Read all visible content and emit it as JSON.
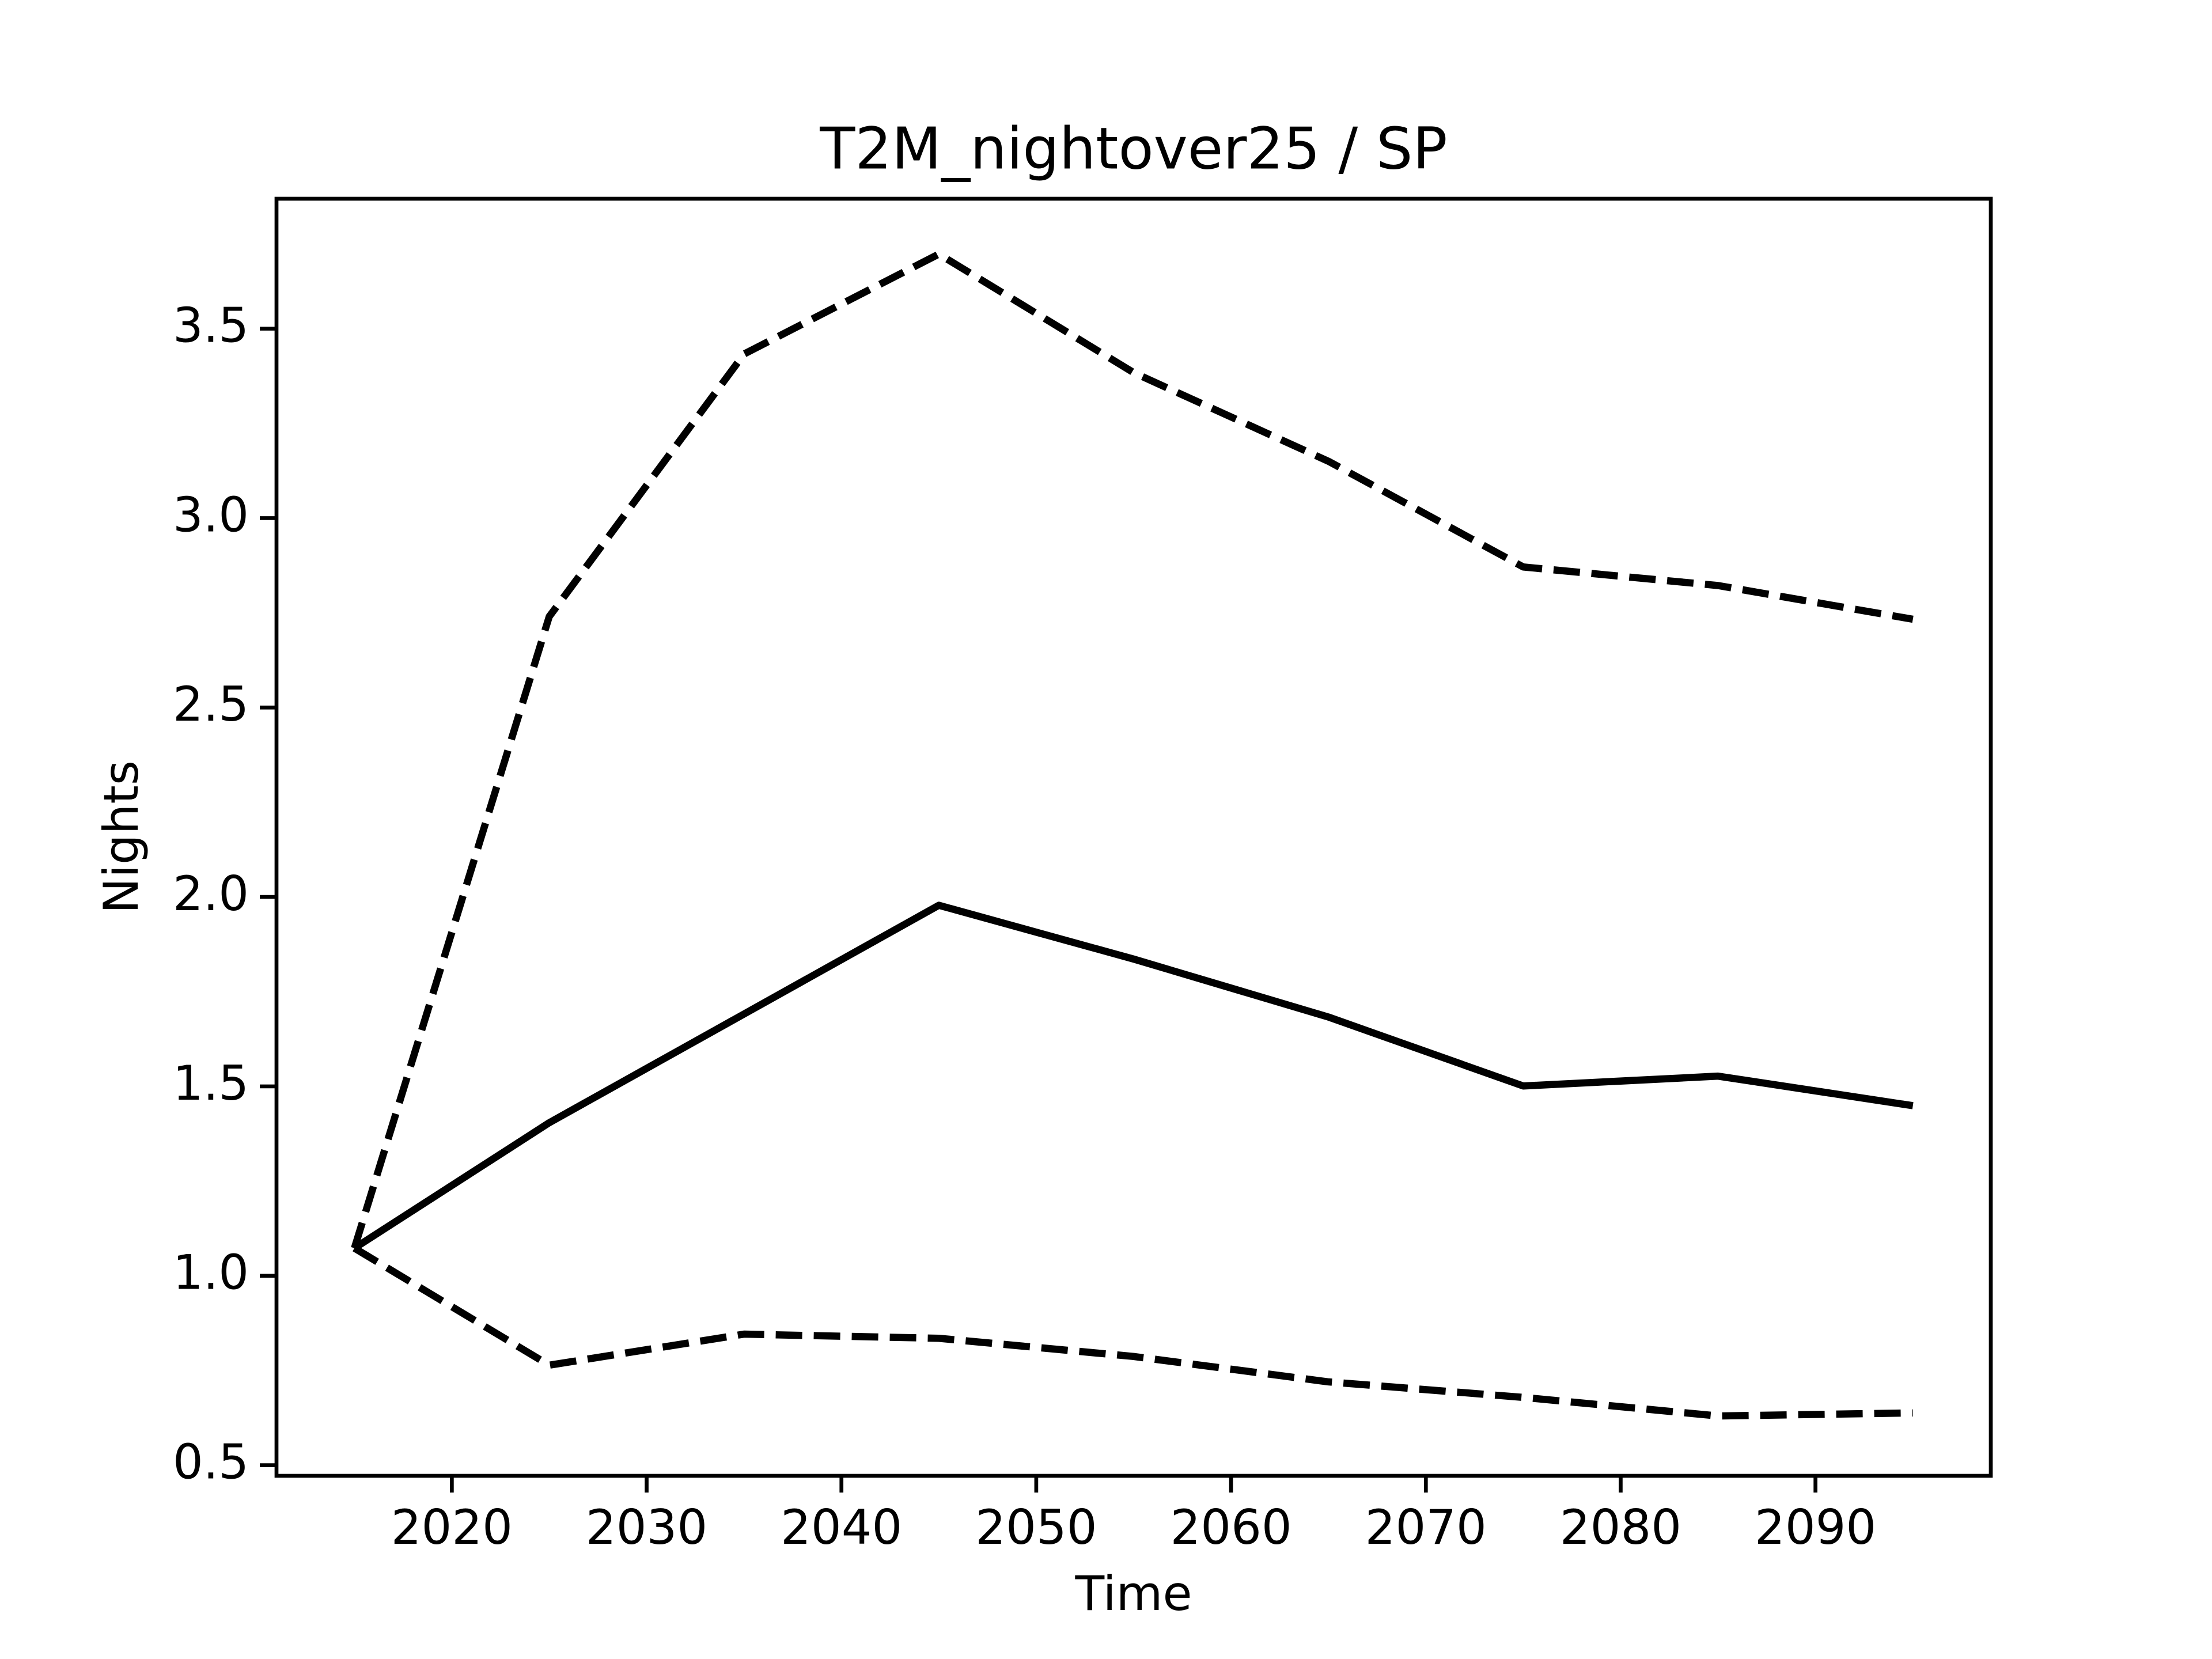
{
  "chart_data": {
    "type": "line",
    "title": "T2M_nightover25 / SP",
    "xlabel": "Time",
    "ylabel": "Nights",
    "x": [
      2015,
      2025,
      2035,
      2045,
      2055,
      2065,
      2075,
      2085,
      2095
    ],
    "series": [
      {
        "color": "#000000",
        "linestyle": "solid",
        "values": [
          1.073,
          1.404,
          1.691,
          1.978,
          1.836,
          1.683,
          1.501,
          1.527,
          1.449
        ]
      },
      {
        "color": "#000000",
        "linestyle": "dashed",
        "values": [
          1.073,
          2.74,
          3.433,
          3.697,
          3.384,
          3.15,
          2.871,
          2.822,
          2.733
        ]
      },
      {
        "color": "#000000",
        "linestyle": "dashed",
        "values": [
          1.073,
          0.764,
          0.846,
          0.835,
          0.787,
          0.72,
          0.679,
          0.63,
          0.638
        ]
      }
    ],
    "xlim": [
      2011,
      2099
    ],
    "xticks": [
      2020,
      2030,
      2040,
      2050,
      2060,
      2070,
      2080,
      2090
    ],
    "ylim": [
      0.472,
      3.843
    ],
    "yticks": [
      0.5,
      1.0,
      1.5,
      2.0,
      2.5,
      3.0,
      3.5
    ],
    "grid": false
  }
}
